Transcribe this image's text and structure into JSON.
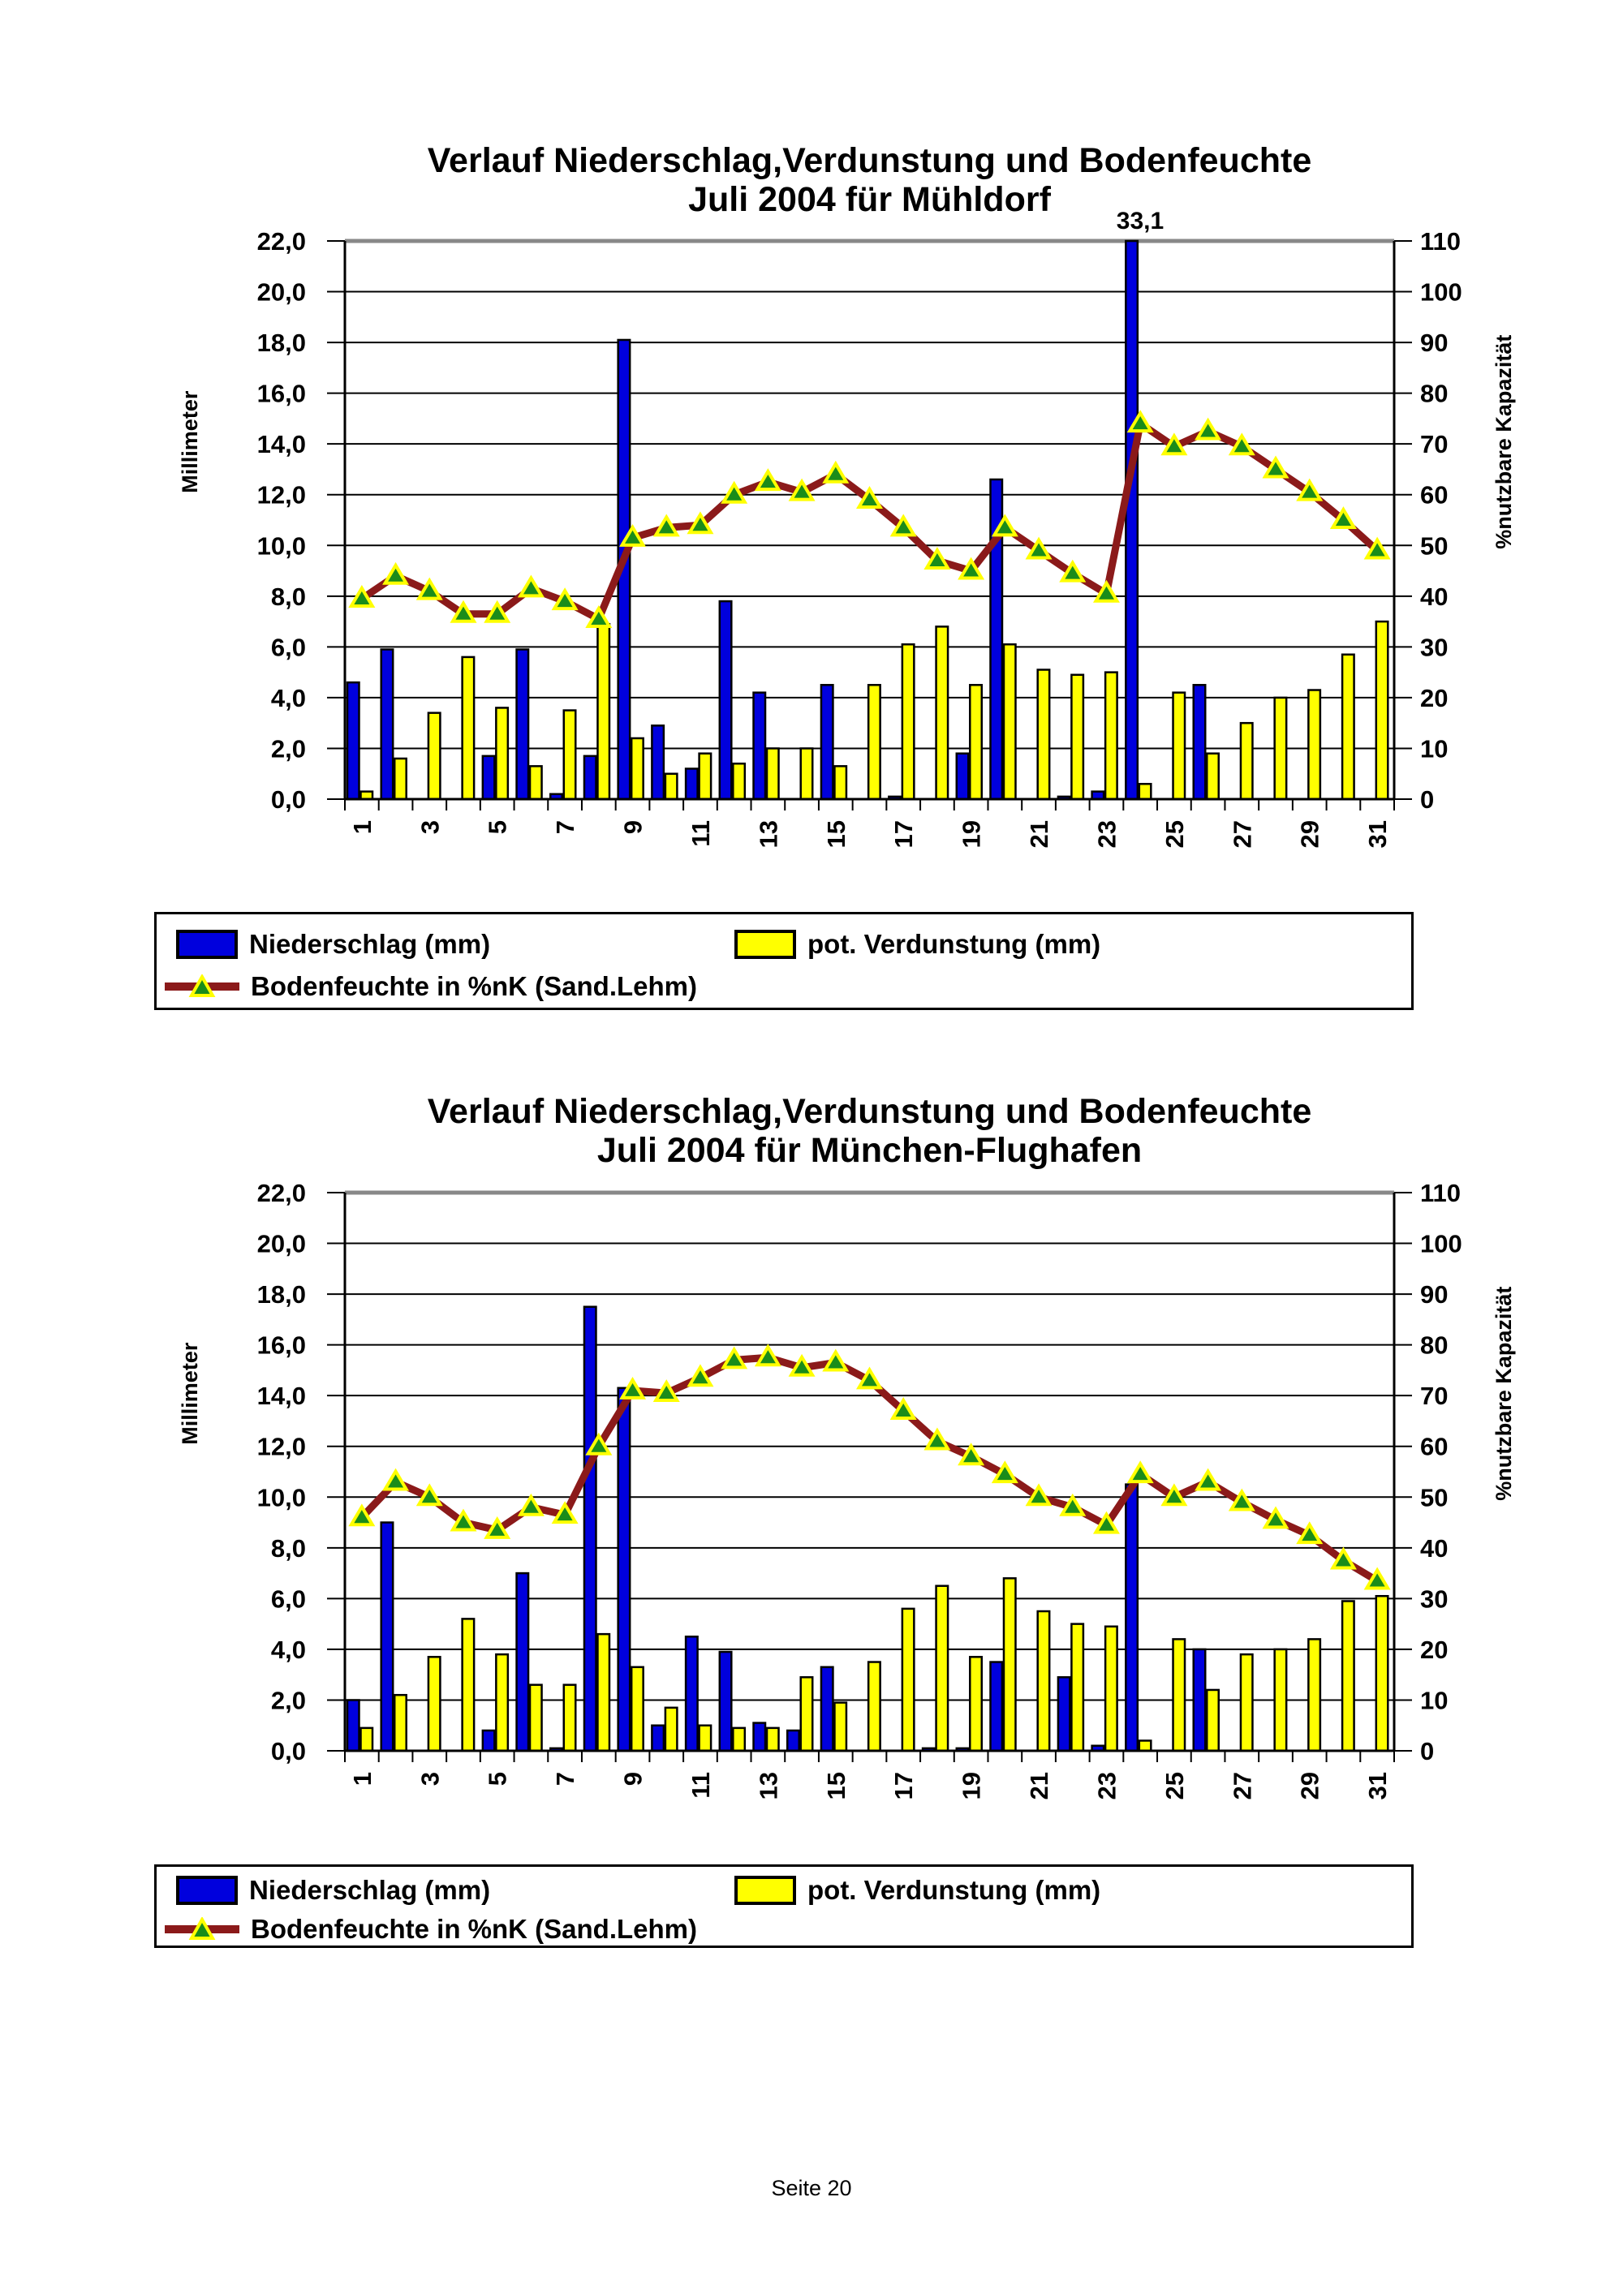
{
  "page": {
    "footer": "Seite 20"
  },
  "chart_data": [
    {
      "type": "bar+line",
      "title_line1": "Verlauf Niederschlag,Verdunstung und Bodenfeuchte",
      "title_line2": "Juli 2004 für Mühldorf",
      "ylabel_left": "Millimeter",
      "ylabel_right": "%nutzbare Kapazität",
      "ylim_left": [
        0,
        22
      ],
      "ylim_right": [
        0,
        110
      ],
      "yticks_left_labels": [
        "0,0",
        "2,0",
        "4,0",
        "6,0",
        "8,0",
        "10,0",
        "12,0",
        "14,0",
        "16,0",
        "18,0",
        "20,0",
        "22,0"
      ],
      "yticks_right_labels": [
        "0",
        "10",
        "20",
        "30",
        "40",
        "50",
        "60",
        "70",
        "80",
        "90",
        "100",
        "110"
      ],
      "x_days": [
        1,
        2,
        3,
        4,
        5,
        6,
        7,
        8,
        9,
        10,
        11,
        12,
        13,
        14,
        15,
        16,
        17,
        18,
        19,
        20,
        21,
        22,
        23,
        24,
        25,
        26,
        27,
        28,
        29,
        30,
        31
      ],
      "xticks": [
        1,
        3,
        5,
        7,
        9,
        11,
        13,
        15,
        17,
        19,
        21,
        23,
        25,
        27,
        29,
        31
      ],
      "grid": "horizontal",
      "legend_position": "bottom",
      "series": [
        {
          "name": "Niederschlag (mm)",
          "type": "bar",
          "axis": "left",
          "color": "#0000dd",
          "values": [
            4.6,
            5.9,
            0,
            0,
            1.7,
            5.9,
            0.2,
            1.7,
            18.1,
            2.9,
            1.2,
            7.8,
            4.2,
            0,
            4.5,
            0,
            0.1,
            0,
            1.8,
            12.6,
            0,
            0.1,
            0.3,
            33.1,
            0,
            4.5,
            0,
            0,
            0,
            0,
            0
          ]
        },
        {
          "name": "pot. Verdunstung (mm)",
          "type": "bar",
          "axis": "left",
          "color": "#ffff00",
          "values": [
            0.3,
            1.6,
            3.4,
            5.6,
            3.6,
            1.3,
            3.5,
            6.9,
            2.4,
            1.0,
            1.8,
            1.4,
            2.0,
            2.0,
            1.3,
            4.5,
            6.1,
            6.8,
            4.5,
            6.1,
            5.1,
            4.9,
            5.0,
            0.6,
            4.2,
            1.8,
            3.0,
            4.0,
            4.3,
            5.7,
            7.0
          ]
        },
        {
          "name": "Bodenfeuchte in %nK (Sand.Lehm)",
          "type": "line",
          "axis": "right",
          "color": "#8b1a1a",
          "marker_fill": "#1a8c1a",
          "marker_stroke": "#ffff00",
          "values": [
            39.5,
            44,
            41,
            36.5,
            36.5,
            41.5,
            39,
            35.5,
            51.5,
            53.5,
            54,
            60,
            62.5,
            60.5,
            64,
            59,
            53.5,
            47,
            45,
            53.5,
            49,
            44.5,
            40.5,
            74,
            69.5,
            72.5,
            69.5,
            65,
            60.5,
            55,
            49
          ]
        }
      ],
      "annotation": {
        "day": 24,
        "text": "33,1"
      }
    },
    {
      "type": "bar+line",
      "title_line1": "Verlauf Niederschlag,Verdunstung und Bodenfeuchte",
      "title_line2": "Juli 2004 für München-Flughafen",
      "ylabel_left": "Millimeter",
      "ylabel_right": "%nutzbare Kapazität",
      "ylim_left": [
        0,
        22
      ],
      "ylim_right": [
        0,
        110
      ],
      "yticks_left_labels": [
        "0,0",
        "2,0",
        "4,0",
        "6,0",
        "8,0",
        "10,0",
        "12,0",
        "14,0",
        "16,0",
        "18,0",
        "20,0",
        "22,0"
      ],
      "yticks_right_labels": [
        "0",
        "10",
        "20",
        "30",
        "40",
        "50",
        "60",
        "70",
        "80",
        "90",
        "100",
        "110"
      ],
      "x_days": [
        1,
        2,
        3,
        4,
        5,
        6,
        7,
        8,
        9,
        10,
        11,
        12,
        13,
        14,
        15,
        16,
        17,
        18,
        19,
        20,
        21,
        22,
        23,
        24,
        25,
        26,
        27,
        28,
        29,
        30,
        31
      ],
      "xticks": [
        1,
        3,
        5,
        7,
        9,
        11,
        13,
        15,
        17,
        19,
        21,
        23,
        25,
        27,
        29,
        31
      ],
      "grid": "horizontal",
      "legend_position": "bottom",
      "series": [
        {
          "name": "Niederschlag (mm)",
          "type": "bar",
          "axis": "left",
          "color": "#0000dd",
          "values": [
            2.0,
            9.0,
            0,
            0,
            0.8,
            7.0,
            0.1,
            17.5,
            14.3,
            1.0,
            4.5,
            3.9,
            1.1,
            0.8,
            3.3,
            0,
            0,
            0.1,
            0.1,
            3.5,
            0,
            2.9,
            0.2,
            10.5,
            0,
            4.0,
            0,
            0,
            0,
            0,
            0
          ]
        },
        {
          "name": "pot. Verdunstung (mm)",
          "type": "bar",
          "axis": "left",
          "color": "#ffff00",
          "values": [
            0.9,
            2.2,
            3.7,
            5.2,
            3.8,
            2.6,
            2.6,
            4.6,
            3.3,
            1.7,
            1.0,
            0.9,
            0.9,
            2.9,
            1.9,
            3.5,
            5.6,
            6.5,
            3.7,
            6.8,
            5.5,
            5.0,
            4.9,
            0.4,
            4.4,
            2.4,
            3.8,
            4.0,
            4.4,
            5.9,
            6.1
          ]
        },
        {
          "name": "Bodenfeuchte in %nK (Sand.Lehm)",
          "type": "line",
          "axis": "right",
          "color": "#8b1a1a",
          "marker_fill": "#1a8c1a",
          "marker_stroke": "#ffff00",
          "values": [
            46,
            53,
            50,
            45,
            43.5,
            48,
            46.5,
            60,
            71,
            70.5,
            73.5,
            77,
            77.5,
            75.5,
            76.5,
            73,
            67,
            61,
            58,
            54.5,
            50,
            48,
            44.5,
            54.5,
            50,
            53,
            49,
            45.5,
            42.5,
            37.5,
            33.5
          ]
        }
      ],
      "annotation": null
    }
  ]
}
